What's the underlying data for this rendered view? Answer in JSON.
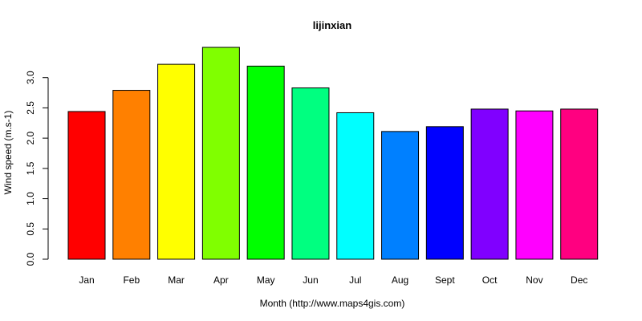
{
  "chart_data": {
    "type": "bar",
    "title": "lijinxian",
    "xlabel": "Month (http://www.maps4gis.com)",
    "ylabel": "Wind speed (m.s-1)",
    "categories": [
      "Jan",
      "Feb",
      "Mar",
      "Apr",
      "May",
      "Jun",
      "Jul",
      "Aug",
      "Sept",
      "Oct",
      "Nov",
      "Dec"
    ],
    "values": [
      2.44,
      2.79,
      3.22,
      3.5,
      3.19,
      2.83,
      2.42,
      2.11,
      2.19,
      2.48,
      2.45,
      2.48
    ],
    "colors": [
      "#FF0000",
      "#FF8000",
      "#FFFF00",
      "#80FF00",
      "#00FF00",
      "#00FF80",
      "#00FFFF",
      "#0080FF",
      "#0000FF",
      "#8000FF",
      "#FF00FF",
      "#FF0080"
    ],
    "ylim": [
      0,
      3.5
    ],
    "yticks": [
      0.0,
      0.5,
      1.0,
      1.5,
      2.0,
      2.5,
      3.0
    ],
    "ytick_labels": [
      "0.0",
      "0.5",
      "1.0",
      "1.5",
      "2.0",
      "2.5",
      "3.0"
    ],
    "grid": false,
    "legend": "none"
  }
}
